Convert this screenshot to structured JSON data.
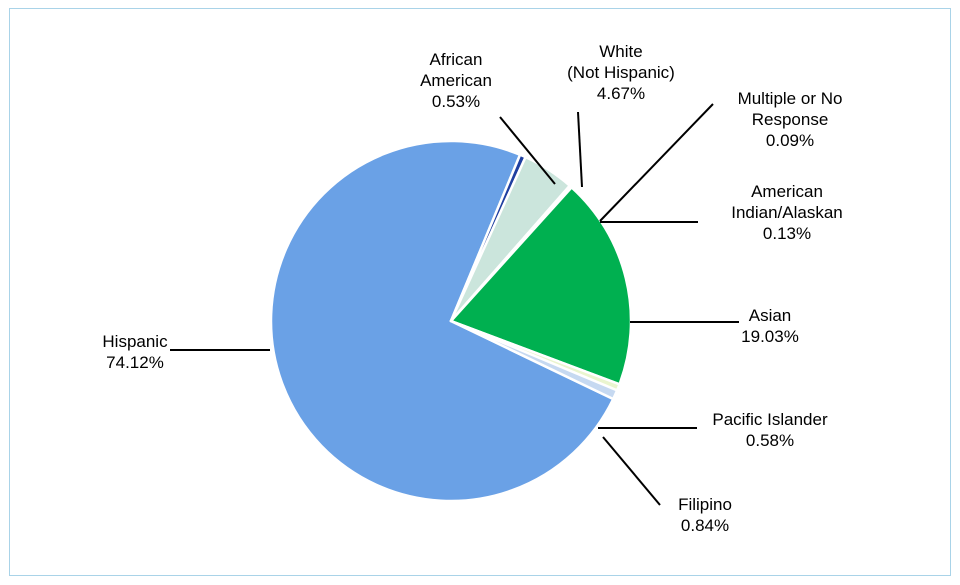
{
  "chart_data": {
    "type": "pie",
    "slices": [
      {
        "label": "Hispanic",
        "value": 74.12,
        "value_label": "74.12%",
        "color": "#6aa1e6"
      },
      {
        "label": "African American",
        "value": 0.53,
        "value_label": "0.53%",
        "color": "#1f3fa0"
      },
      {
        "label": "White (Not Hispanic)",
        "value": 4.67,
        "value_label": "4.67%",
        "color": "#cbe5dc"
      },
      {
        "label": "Multiple or No Response",
        "value": 0.09,
        "value_label": "0.09%",
        "color": "#f3f6e4"
      },
      {
        "label": "American Indian/Alaskan",
        "value": 0.13,
        "value_label": "0.13%",
        "color": "#e8f1f6"
      },
      {
        "label": "Asian",
        "value": 19.03,
        "value_label": "19.03%",
        "color": "#00b050"
      },
      {
        "label": "Pacific Islander",
        "value": 0.58,
        "value_label": "0.58%",
        "color": "#eaf5cf"
      },
      {
        "label": "Filipino",
        "value": 0.84,
        "value_label": "0.84%",
        "color": "#c6d9f1"
      }
    ],
    "label_lines": [
      [
        "Hispanic",
        "74.12%"
      ],
      [
        "African",
        "American",
        "0.53%"
      ],
      [
        "White",
        "(Not Hispanic)",
        "4.67%"
      ],
      [
        "Multiple or No",
        "Response",
        "0.09%"
      ],
      [
        "American",
        "Indian/Alaskan",
        "0.13%"
      ],
      [
        "Asian",
        "19.03%"
      ],
      [
        "Pacific Islander",
        "0.58%"
      ],
      [
        "Filipino",
        "0.84%"
      ]
    ],
    "legend": "none"
  }
}
